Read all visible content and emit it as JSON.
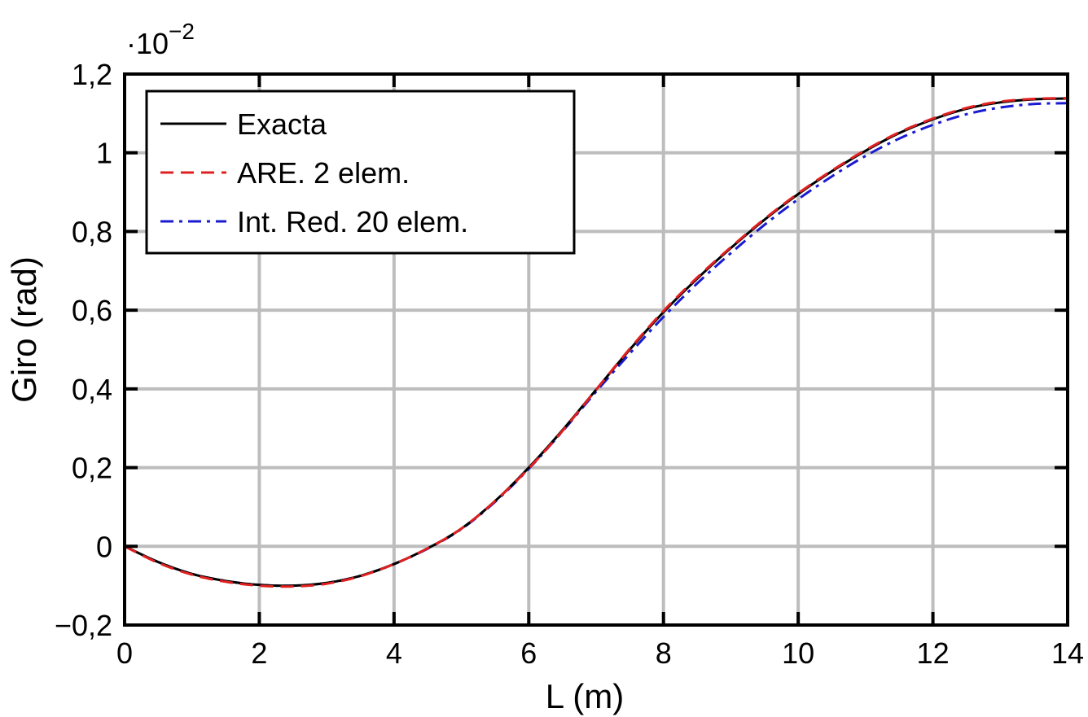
{
  "chart_data": {
    "type": "line",
    "xlabel": "L (m)",
    "ylabel": "Giro (rad)",
    "y_multiplier": "·10",
    "y_multiplier_exponent": "−2",
    "xlim": [
      0,
      14
    ],
    "ylim": [
      -0.2,
      1.2
    ],
    "x_ticks": [
      0,
      2,
      4,
      6,
      8,
      10,
      12,
      14
    ],
    "x_tick_labels": [
      "0",
      "2",
      "4",
      "6",
      "8",
      "10",
      "12",
      "14"
    ],
    "y_ticks": [
      -0.2,
      0,
      0.2,
      0.4,
      0.6,
      0.8,
      1.0,
      1.2
    ],
    "y_tick_labels": [
      "−0,2",
      "0",
      "0,2",
      "0,4",
      "0,6",
      "0,8",
      "1",
      "1,2"
    ],
    "grid": true,
    "legend_position": "top-left",
    "x": [
      0,
      0.5,
      1,
      1.5,
      2,
      2.5,
      3,
      3.5,
      4,
      4.5,
      5,
      5.5,
      6,
      6.5,
      7,
      7.5,
      8,
      8.5,
      9,
      9.5,
      10,
      10.5,
      11,
      11.5,
      12,
      12.5,
      13,
      13.5,
      14
    ],
    "series": [
      {
        "name": "Exacta",
        "color": "#000000",
        "dash": "solid",
        "values": [
          0.0,
          -0.04,
          -0.07,
          -0.088,
          -0.098,
          -0.1,
          -0.093,
          -0.075,
          -0.045,
          -0.005,
          0.045,
          0.115,
          0.2,
          0.295,
          0.398,
          0.5,
          0.595,
          0.68,
          0.758,
          0.83,
          0.895,
          0.953,
          1.005,
          1.05,
          1.085,
          1.112,
          1.128,
          1.136,
          1.138
        ]
      },
      {
        "name": "ARE. 2 elem.",
        "color": "#e02020",
        "dash": "dashed",
        "values": [
          0.0,
          -0.042,
          -0.072,
          -0.09,
          -0.1,
          -0.102,
          -0.095,
          -0.076,
          -0.045,
          -0.005,
          0.045,
          0.115,
          0.198,
          0.293,
          0.398,
          0.502,
          0.598,
          0.683,
          0.76,
          0.832,
          0.897,
          0.955,
          1.007,
          1.052,
          1.087,
          1.114,
          1.13,
          1.137,
          1.139
        ]
      },
      {
        "name": "Int. Red. 20 elem.",
        "color": "#1a1ad0",
        "dash": "dashdot",
        "values": [
          0.0,
          -0.04,
          -0.07,
          -0.088,
          -0.098,
          -0.1,
          -0.093,
          -0.075,
          -0.045,
          -0.006,
          0.044,
          0.113,
          0.197,
          0.292,
          0.393,
          0.49,
          0.583,
          0.668,
          0.745,
          0.817,
          0.882,
          0.94,
          0.992,
          1.036,
          1.071,
          1.098,
          1.115,
          1.124,
          1.126
        ]
      }
    ]
  }
}
